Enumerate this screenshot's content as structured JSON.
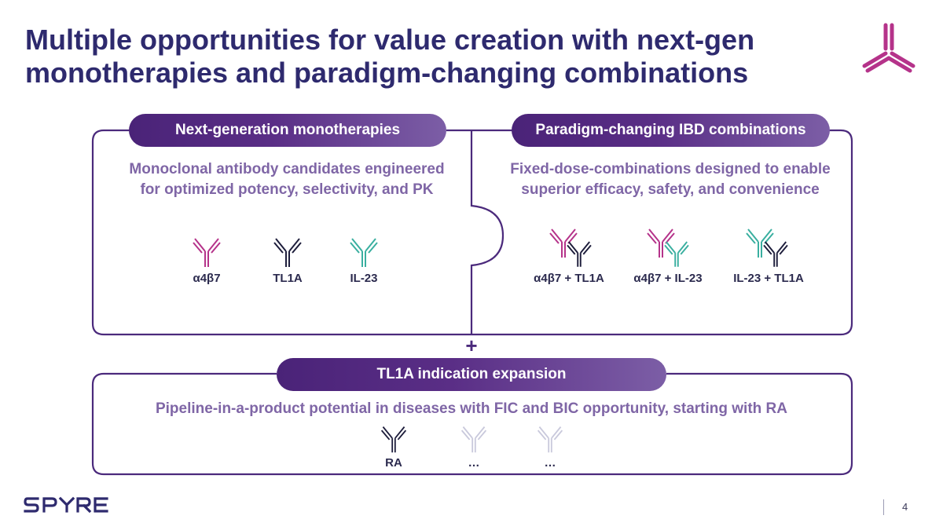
{
  "title": {
    "line1": "Multiple opportunities for value creation with next-gen",
    "line2": "monotherapies and paradigm-changing combinations"
  },
  "colors": {
    "title": "#2e2a6e",
    "frame": "#4b2a7c",
    "subtitle": "#7f66a6",
    "pink": "#b5338a",
    "navy": "#1e1e3c",
    "teal": "#3aafa0",
    "faded": "#c9c9dc"
  },
  "left_panel": {
    "header": "Next-generation monotherapies",
    "subtitle_line1": "Monoclonal antibody candidates engineered",
    "subtitle_line2": "for optimized potency, selectivity, and PK",
    "antibodies": [
      {
        "label": "α4β7",
        "icon": "antibody-pink-icon"
      },
      {
        "label": "TL1A",
        "icon": "antibody-navy-icon"
      },
      {
        "label": "IL-23",
        "icon": "antibody-teal-icon"
      }
    ]
  },
  "right_panel": {
    "header": "Paradigm-changing IBD combinations",
    "subtitle_line1": "Fixed-dose-combinations designed to enable",
    "subtitle_line2": "superior efficacy, safety, and convenience",
    "combinations": [
      {
        "label": "α4β7 + TL1A"
      },
      {
        "label": "α4β7 + IL-23"
      },
      {
        "label": "IL-23 + TL1A"
      }
    ]
  },
  "connector": {
    "plus": "+"
  },
  "bottom_panel": {
    "header": "TL1A indication expansion",
    "subtitle": "Pipeline-in-a-product potential in diseases with FIC and BIC opportunity, starting with RA",
    "indications": [
      {
        "label": "RA"
      },
      {
        "label": "…"
      },
      {
        "label": "…"
      }
    ]
  },
  "footer": {
    "brand": "SPYRE",
    "page_number": "4"
  }
}
